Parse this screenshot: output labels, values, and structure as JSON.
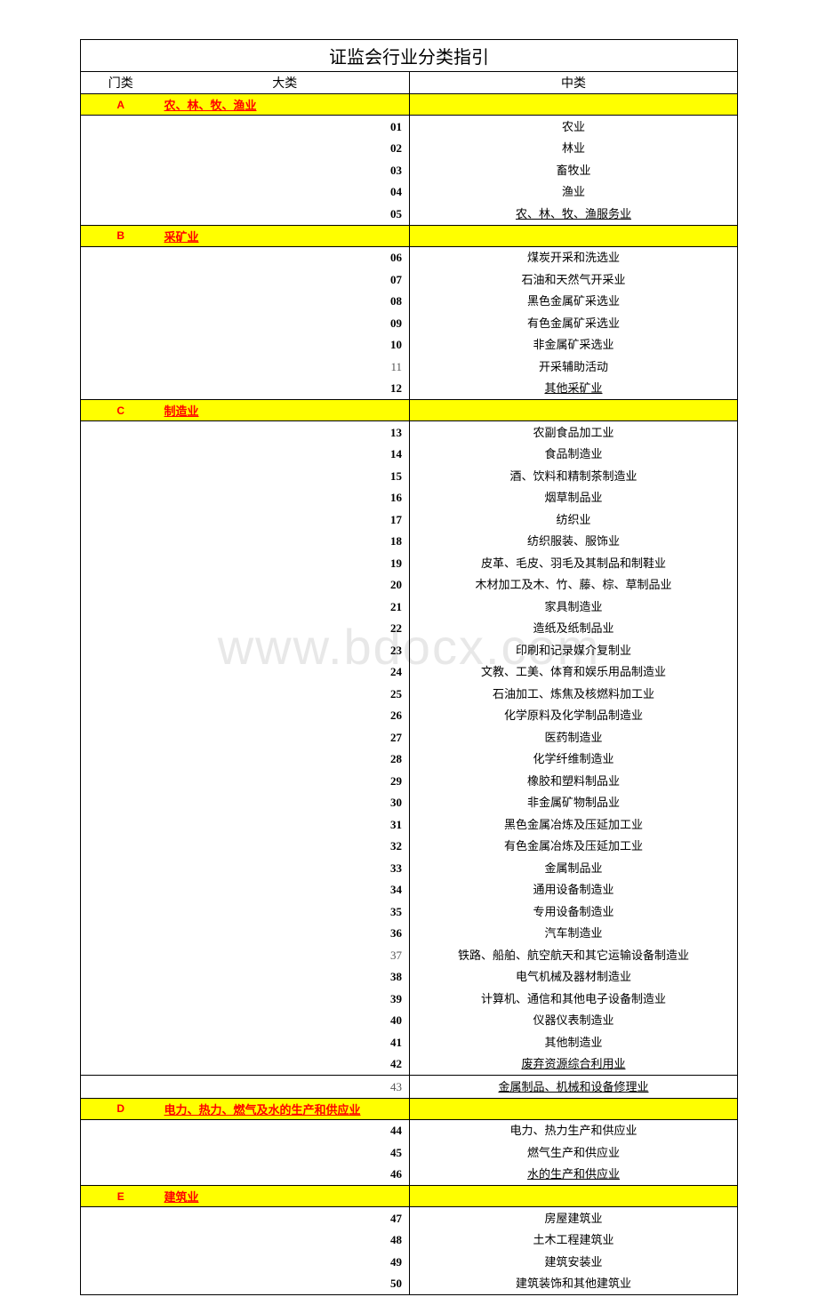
{
  "title": "证监会行业分类指引",
  "headers": {
    "gate": "门类",
    "major": "大类",
    "mid": "中类"
  },
  "watermark": "www.bdocx.com",
  "colors": {
    "highlight_bg": "#ffff00",
    "category_text": "#ff0000",
    "border": "#000000",
    "watermark": "#e8e8e8"
  },
  "sections": [
    {
      "letter": "A",
      "name": "农、林、牧、渔业",
      "rows": [
        {
          "code": "01",
          "desc": "农业"
        },
        {
          "code": "02",
          "desc": "林业"
        },
        {
          "code": "03",
          "desc": "畜牧业"
        },
        {
          "code": "04",
          "desc": "渔业"
        },
        {
          "code": "05",
          "desc": "农、林、牧、渔服务业",
          "underlined": true,
          "last": true
        }
      ]
    },
    {
      "letter": "B",
      "name": "采矿业",
      "rows": [
        {
          "code": "06",
          "desc": "煤炭开采和洗选业"
        },
        {
          "code": "07",
          "desc": "石油和天然气开采业"
        },
        {
          "code": "08",
          "desc": "黑色金属矿采选业"
        },
        {
          "code": "09",
          "desc": "有色金属矿采选业"
        },
        {
          "code": "10",
          "desc": "非金属矿采选业"
        },
        {
          "code": "11",
          "desc": "开采辅助活动",
          "light": true
        },
        {
          "code": "12",
          "desc": "其他采矿业",
          "underlined": true,
          "last": true
        }
      ]
    },
    {
      "letter": "C",
      "name": "制造业",
      "rows": [
        {
          "code": "13",
          "desc": "农副食品加工业"
        },
        {
          "code": "14",
          "desc": "食品制造业"
        },
        {
          "code": "15",
          "desc": "酒、饮料和精制茶制造业"
        },
        {
          "code": "16",
          "desc": "烟草制品业"
        },
        {
          "code": "17",
          "desc": "纺织业"
        },
        {
          "code": "18",
          "desc": "纺织服装、服饰业"
        },
        {
          "code": "19",
          "desc": "皮革、毛皮、羽毛及其制品和制鞋业"
        },
        {
          "code": "20",
          "desc": "木材加工及木、竹、藤、棕、草制品业"
        },
        {
          "code": "21",
          "desc": "家具制造业"
        },
        {
          "code": "22",
          "desc": "造纸及纸制品业"
        },
        {
          "code": "23",
          "desc": "印刷和记录媒介复制业"
        },
        {
          "code": "24",
          "desc": "文教、工美、体育和娱乐用品制造业"
        },
        {
          "code": "25",
          "desc": "石油加工、炼焦及核燃料加工业"
        },
        {
          "code": "26",
          "desc": "化学原料及化学制品制造业"
        },
        {
          "code": "27",
          "desc": "医药制造业"
        },
        {
          "code": "28",
          "desc": "化学纤维制造业"
        },
        {
          "code": "29",
          "desc": "橡胶和塑料制品业"
        },
        {
          "code": "30",
          "desc": "非金属矿物制品业"
        },
        {
          "code": "31",
          "desc": "黑色金属冶炼及压延加工业"
        },
        {
          "code": "32",
          "desc": "有色金属冶炼及压延加工业"
        },
        {
          "code": "33",
          "desc": "金属制品业"
        },
        {
          "code": "34",
          "desc": "通用设备制造业"
        },
        {
          "code": "35",
          "desc": "专用设备制造业"
        },
        {
          "code": "36",
          "desc": "汽车制造业"
        },
        {
          "code": "37",
          "desc": "铁路、船舶、航空航天和其它运输设备制造业",
          "light": true
        },
        {
          "code": "38",
          "desc": "电气机械及器材制造业"
        },
        {
          "code": "39",
          "desc": "计算机、通信和其他电子设备制造业"
        },
        {
          "code": "40",
          "desc": "仪器仪表制造业"
        },
        {
          "code": "41",
          "desc": "其他制造业"
        },
        {
          "code": "42",
          "desc": "废弃资源综合利用业",
          "underlined": true,
          "heavy": true
        },
        {
          "code": "43",
          "desc": "金属制品、机械和设备修理业",
          "underlined": true,
          "last": true,
          "light": true
        }
      ]
    },
    {
      "letter": "D",
      "name": "电力、热力、燃气及水的生产和供应业",
      "rows": [
        {
          "code": "44",
          "desc": "电力、热力生产和供应业"
        },
        {
          "code": "45",
          "desc": "燃气生产和供应业"
        },
        {
          "code": "46",
          "desc": "水的生产和供应业",
          "underlined": true,
          "last": true
        }
      ]
    },
    {
      "letter": "E",
      "name": "建筑业",
      "rows": [
        {
          "code": "47",
          "desc": "房屋建筑业"
        },
        {
          "code": "48",
          "desc": "土木工程建筑业"
        },
        {
          "code": "49",
          "desc": "建筑安装业"
        },
        {
          "code": "50",
          "desc": "建筑装饰和其他建筑业"
        }
      ]
    }
  ]
}
